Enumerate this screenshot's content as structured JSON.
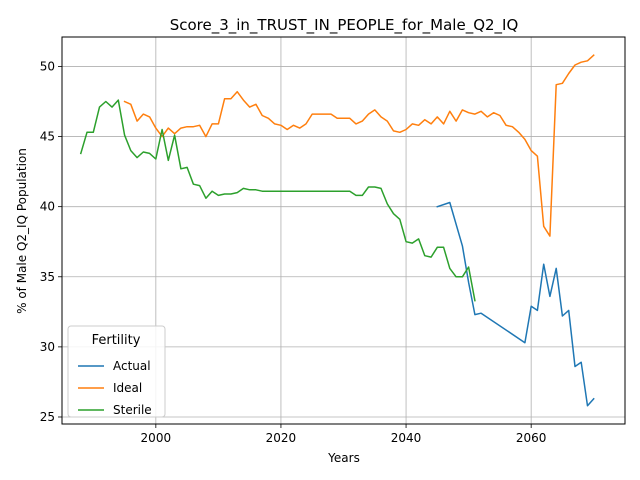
{
  "chart_data": {
    "type": "line",
    "title": "Score_3_in_TRUST_IN_PEOPLE_for_Male_Q2_IQ",
    "xlabel": "Years",
    "ylabel": "% of Male Q2_IQ Population",
    "xlim": [
      1985,
      2075
    ],
    "ylim": [
      24.5,
      52.1
    ],
    "xticks": [
      2000,
      2020,
      2040,
      2060
    ],
    "yticks": [
      25,
      30,
      35,
      40,
      45,
      50
    ],
    "grid": true,
    "legend": {
      "title": "Fertility",
      "placement": "lower-left"
    },
    "series": [
      {
        "name": "Actual",
        "color": "#1f77b4",
        "x": [
          2045,
          2047,
          2049,
          2050,
          2051,
          2052,
          2059,
          2060,
          2061,
          2062,
          2063,
          2064,
          2065,
          2066,
          2067,
          2068,
          2069,
          2070
        ],
        "y": [
          40.0,
          40.3,
          37.2,
          34.6,
          32.3,
          32.4,
          30.3,
          32.9,
          32.6,
          35.9,
          33.6,
          35.6,
          32.2,
          32.6,
          28.6,
          28.9,
          25.8,
          26.3
        ]
      },
      {
        "name": "Ideal",
        "color": "#ff7f0e",
        "x": [
          1995,
          1996,
          1997,
          1998,
          1999,
          2000,
          2001,
          2002,
          2003,
          2004,
          2005,
          2006,
          2007,
          2008,
          2009,
          2010,
          2011,
          2012,
          2013,
          2014,
          2015,
          2016,
          2017,
          2018,
          2019,
          2020,
          2021,
          2022,
          2023,
          2024,
          2025,
          2026,
          2027,
          2028,
          2029,
          2030,
          2031,
          2032,
          2033,
          2034,
          2035,
          2036,
          2037,
          2038,
          2039,
          2040,
          2041,
          2042,
          2043,
          2044,
          2045,
          2046,
          2047,
          2048,
          2049,
          2050,
          2051,
          2052,
          2053,
          2054,
          2055,
          2056,
          2057,
          2058,
          2059,
          2060,
          2061,
          2062,
          2063,
          2064,
          2065,
          2066,
          2067,
          2068,
          2069,
          2070
        ],
        "y": [
          47.5,
          47.3,
          46.1,
          46.6,
          46.4,
          45.6,
          45.0,
          45.6,
          45.2,
          45.6,
          45.7,
          45.7,
          45.8,
          45.0,
          45.9,
          45.9,
          47.7,
          47.7,
          48.2,
          47.6,
          47.1,
          47.3,
          46.5,
          46.3,
          45.9,
          45.8,
          45.5,
          45.8,
          45.6,
          45.9,
          46.6,
          46.6,
          46.6,
          46.6,
          46.3,
          46.3,
          46.3,
          45.9,
          46.1,
          46.6,
          46.9,
          46.4,
          46.1,
          45.4,
          45.3,
          45.5,
          45.9,
          45.8,
          46.2,
          45.9,
          46.4,
          45.9,
          46.8,
          46.1,
          46.9,
          46.7,
          46.6,
          46.8,
          46.4,
          46.7,
          46.5,
          45.8,
          45.7,
          45.3,
          44.8,
          44.0,
          43.6,
          38.6,
          37.9,
          48.7,
          48.8,
          49.5,
          50.1,
          50.3,
          50.4,
          50.8
        ]
      },
      {
        "name": "Sterile",
        "color": "#2ca02c",
        "x": [
          1988,
          1989,
          1990,
          1991,
          1992,
          1993,
          1994,
          1995,
          1996,
          1997,
          1998,
          1999,
          2000,
          2001,
          2002,
          2003,
          2004,
          2005,
          2006,
          2007,
          2008,
          2009,
          2010,
          2011,
          2012,
          2013,
          2014,
          2015,
          2016,
          2017,
          2018,
          2019,
          2020,
          2021,
          2022,
          2023,
          2024,
          2025,
          2026,
          2027,
          2028,
          2029,
          2030,
          2031,
          2032,
          2033,
          2034,
          2035,
          2036,
          2037,
          2038,
          2039,
          2040,
          2041,
          2042,
          2043,
          2044,
          2045,
          2046,
          2047,
          2048,
          2049,
          2050,
          2051
        ],
        "y": [
          43.8,
          45.3,
          45.3,
          47.1,
          47.5,
          47.1,
          47.6,
          45.1,
          44.0,
          43.5,
          43.9,
          43.8,
          43.4,
          45.5,
          43.3,
          45.1,
          42.7,
          42.8,
          41.6,
          41.5,
          40.6,
          41.1,
          40.8,
          40.9,
          40.9,
          41.0,
          41.3,
          41.2,
          41.2,
          41.1,
          41.1,
          41.1,
          41.1,
          41.1,
          41.1,
          41.1,
          41.1,
          41.1,
          41.1,
          41.1,
          41.1,
          41.1,
          41.1,
          41.1,
          40.8,
          40.8,
          41.4,
          41.4,
          41.3,
          40.2,
          39.5,
          39.1,
          37.5,
          37.4,
          37.7,
          36.5,
          36.4,
          37.1,
          37.1,
          35.6,
          35.0,
          35.0,
          35.7,
          33.3
        ]
      }
    ]
  }
}
